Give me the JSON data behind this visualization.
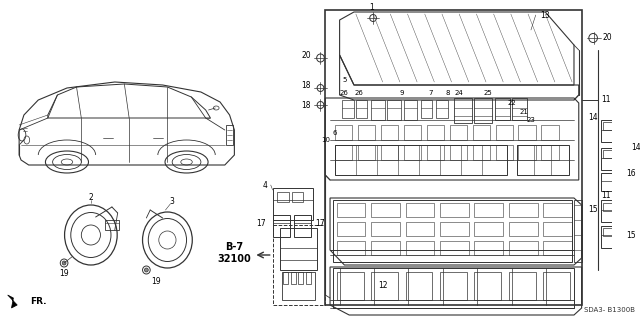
{
  "bg_color": "#ffffff",
  "diagram_id": "SDA3- B1300B",
  "line_color": "#333333",
  "text_color": "#000000",
  "font_size_small": 5.5,
  "font_size_label": 6.0,
  "font_size_bold": 7.5,
  "font_size_id": 5.0
}
